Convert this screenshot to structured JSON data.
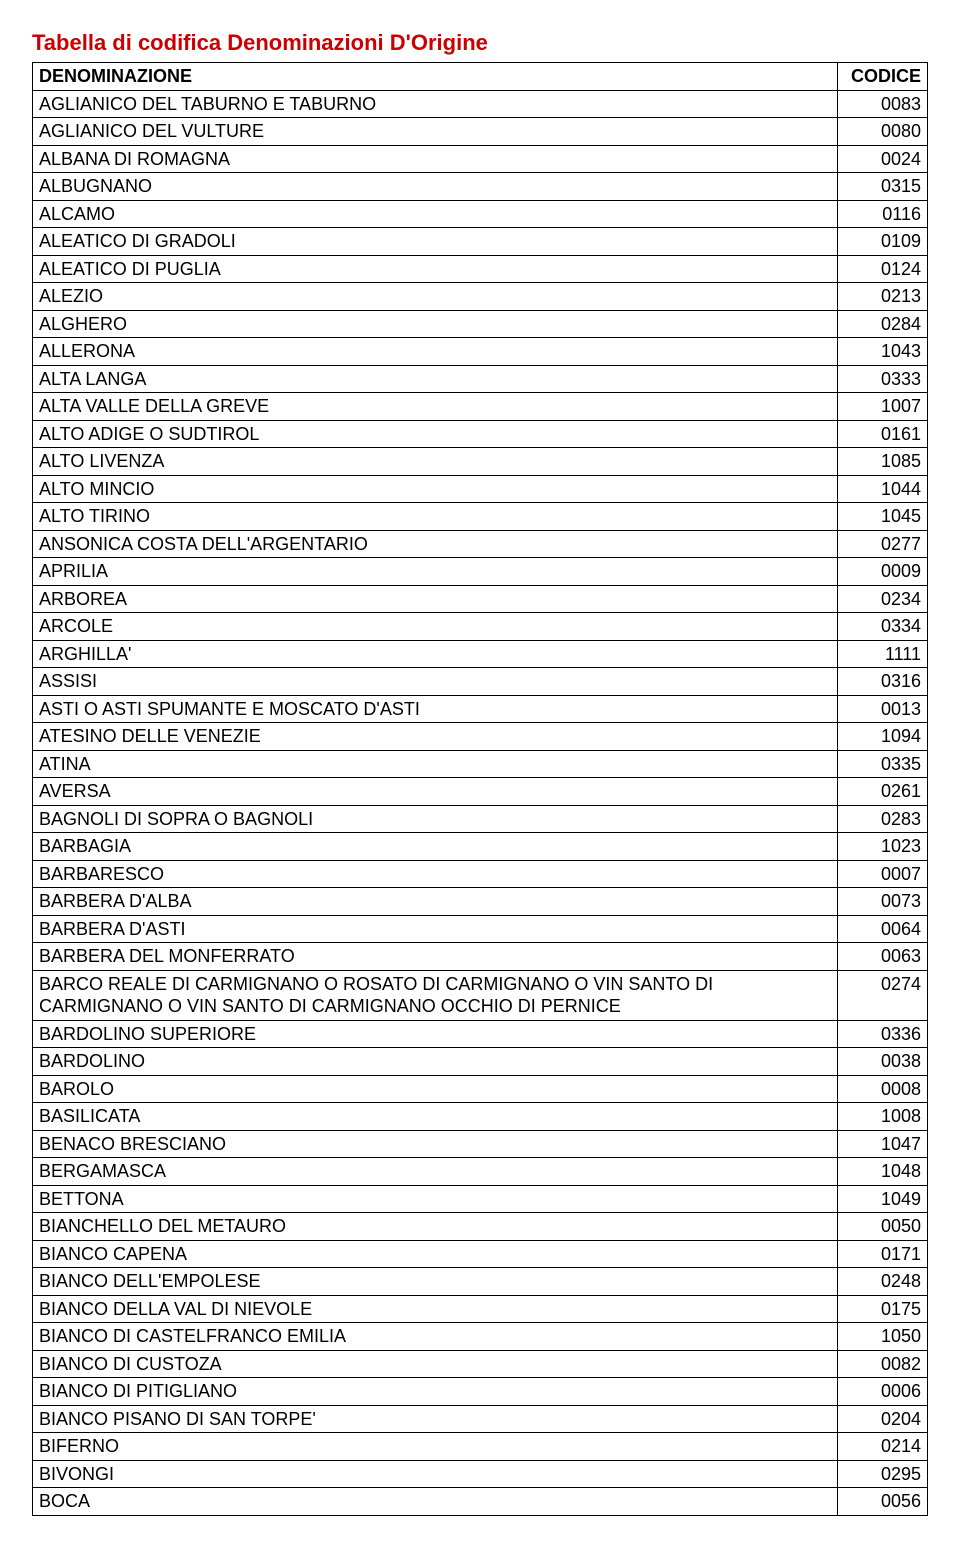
{
  "title": {
    "text": "Tabella di codifica Denominazioni D'Origine",
    "color": "#cc0000"
  },
  "table": {
    "headers": {
      "name": "DENOMINAZIONE",
      "code": "CODICE"
    },
    "rows": [
      {
        "name": "AGLIANICO DEL TABURNO E TABURNO",
        "code": "0083"
      },
      {
        "name": "AGLIANICO DEL VULTURE",
        "code": "0080"
      },
      {
        "name": "ALBANA DI ROMAGNA",
        "code": "0024"
      },
      {
        "name": "ALBUGNANO",
        "code": "0315"
      },
      {
        "name": "ALCAMO",
        "code": "0116"
      },
      {
        "name": "ALEATICO DI GRADOLI",
        "code": "0109"
      },
      {
        "name": "ALEATICO DI PUGLIA",
        "code": "0124"
      },
      {
        "name": "ALEZIO",
        "code": "0213"
      },
      {
        "name": "ALGHERO",
        "code": "0284"
      },
      {
        "name": "ALLERONA",
        "code": "1043"
      },
      {
        "name": "ALTA LANGA",
        "code": "0333"
      },
      {
        "name": "ALTA VALLE DELLA GREVE",
        "code": "1007"
      },
      {
        "name": "ALTO ADIGE O SUDTIROL",
        "code": "0161"
      },
      {
        "name": "ALTO LIVENZA",
        "code": "1085"
      },
      {
        "name": "ALTO MINCIO",
        "code": "1044"
      },
      {
        "name": "ALTO TIRINO",
        "code": "1045"
      },
      {
        "name": "ANSONICA COSTA DELL'ARGENTARIO",
        "code": "0277"
      },
      {
        "name": "APRILIA",
        "code": "0009"
      },
      {
        "name": "ARBOREA",
        "code": "0234"
      },
      {
        "name": "ARCOLE",
        "code": "0334"
      },
      {
        "name": "ARGHILLA'",
        "code": "1111"
      },
      {
        "name": "ASSISI",
        "code": "0316"
      },
      {
        "name": "ASTI O ASTI SPUMANTE E MOSCATO D'ASTI",
        "code": "0013"
      },
      {
        "name": "ATESINO DELLE VENEZIE",
        "code": "1094"
      },
      {
        "name": "ATINA",
        "code": "0335"
      },
      {
        "name": "AVERSA",
        "code": "0261"
      },
      {
        "name": "BAGNOLI DI SOPRA O BAGNOLI",
        "code": "0283"
      },
      {
        "name": "BARBAGIA",
        "code": "1023"
      },
      {
        "name": "BARBARESCO",
        "code": "0007"
      },
      {
        "name": "BARBERA D'ALBA",
        "code": "0073"
      },
      {
        "name": "BARBERA D'ASTI",
        "code": "0064"
      },
      {
        "name": "BARBERA DEL MONFERRATO",
        "code": "0063"
      },
      {
        "name": "BARCO REALE DI CARMIGNANO O ROSATO DI CARMIGNANO O VIN SANTO DI CARMIGNANO O VIN SANTO DI CARMIGNANO OCCHIO DI PERNICE",
        "code": "0274"
      },
      {
        "name": "BARDOLINO SUPERIORE",
        "code": "0336"
      },
      {
        "name": "BARDOLINO",
        "code": "0038"
      },
      {
        "name": "BAROLO",
        "code": "0008"
      },
      {
        "name": "BASILICATA",
        "code": "1008"
      },
      {
        "name": "BENACO BRESCIANO",
        "code": "1047"
      },
      {
        "name": "BERGAMASCA",
        "code": "1048"
      },
      {
        "name": "BETTONA",
        "code": "1049"
      },
      {
        "name": "BIANCHELLO DEL METAURO",
        "code": "0050"
      },
      {
        "name": "BIANCO CAPENA",
        "code": "0171"
      },
      {
        "name": "BIANCO DELL'EMPOLESE",
        "code": "0248"
      },
      {
        "name": "BIANCO DELLA VAL DI NIEVOLE",
        "code": "0175"
      },
      {
        "name": "BIANCO DI CASTELFRANCO EMILIA",
        "code": "1050"
      },
      {
        "name": "BIANCO DI CUSTOZA",
        "code": "0082"
      },
      {
        "name": "BIANCO DI PITIGLIANO",
        "code": "0006"
      },
      {
        "name": "BIANCO PISANO DI SAN TORPE'",
        "code": "0204"
      },
      {
        "name": "BIFERNO",
        "code": "0214"
      },
      {
        "name": "BIVONGI",
        "code": "0295"
      },
      {
        "name": "BOCA",
        "code": "0056"
      }
    ]
  }
}
